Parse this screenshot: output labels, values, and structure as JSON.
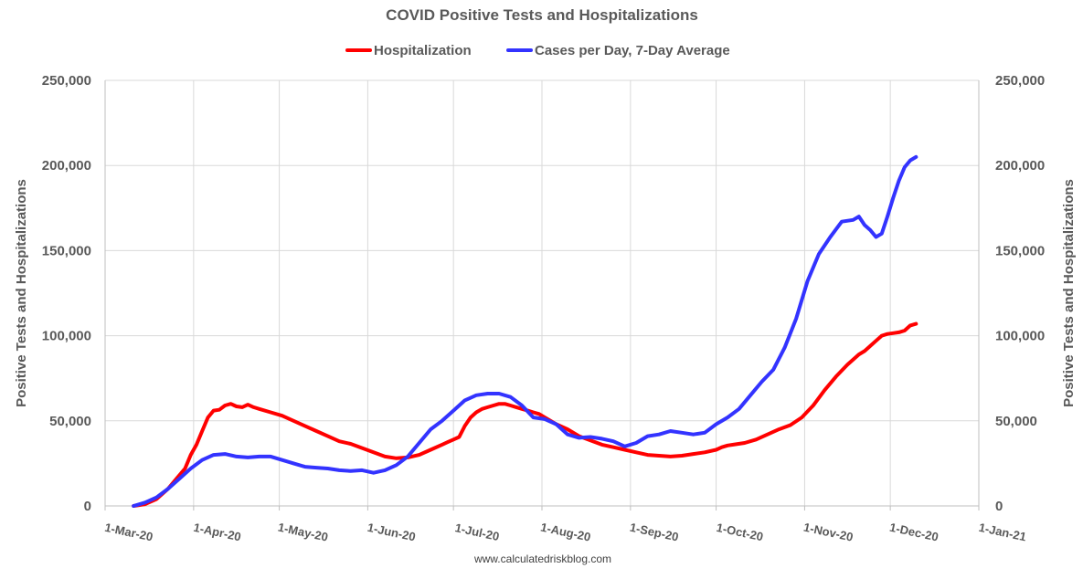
{
  "chart_data": {
    "type": "line",
    "title": "COVID Positive Tests and Hospitalizations",
    "ylabel_left": "Positive Tests and Hospitalizations",
    "ylabel_right": "Positive Tests and Hospitalizations",
    "ylim": [
      0,
      250000
    ],
    "y_ticks": [
      0,
      50000,
      100000,
      150000,
      200000,
      250000
    ],
    "y_tick_labels": [
      "0",
      "50,000",
      "100,000",
      "150,000",
      "200,000",
      "250,000"
    ],
    "x_domain_days": [
      0,
      306
    ],
    "x_ticks": [
      {
        "day": 0,
        "label": "1-Mar-20"
      },
      {
        "day": 31,
        "label": "1-Apr-20"
      },
      {
        "day": 61,
        "label": "1-May-20"
      },
      {
        "day": 92,
        "label": "1-Jun-20"
      },
      {
        "day": 122,
        "label": "1-Jul-20"
      },
      {
        "day": 153,
        "label": "1-Aug-20"
      },
      {
        "day": 184,
        "label": "1-Sep-20"
      },
      {
        "day": 214,
        "label": "1-Oct-20"
      },
      {
        "day": 245,
        "label": "1-Nov-20"
      },
      {
        "day": 275,
        "label": "1-Dec-20"
      },
      {
        "day": 306,
        "label": "1-Jan-21"
      }
    ],
    "legend_position": "top",
    "source_text": "www.calculatedriskblog.com",
    "series": [
      {
        "name": "Hospitalization",
        "color": "#ff0000",
        "x": [
          10,
          14,
          18,
          22,
          25,
          28,
          30,
          32,
          34,
          36,
          38,
          40,
          42,
          44,
          46,
          48,
          50,
          52,
          54,
          58,
          62,
          66,
          70,
          74,
          78,
          82,
          86,
          90,
          94,
          98,
          102,
          106,
          110,
          114,
          118,
          120,
          122,
          124,
          126,
          128,
          130,
          132,
          134,
          136,
          138,
          140,
          142,
          144,
          146,
          148,
          150,
          152,
          154,
          158,
          162,
          166,
          170,
          174,
          178,
          182,
          186,
          190,
          194,
          198,
          202,
          206,
          210,
          214,
          216,
          218,
          220,
          224,
          228,
          232,
          236,
          240,
          244,
          248,
          252,
          256,
          260,
          264,
          266,
          268,
          270,
          272,
          274,
          276,
          278,
          280,
          282,
          284
        ],
        "values": [
          0,
          1000,
          4000,
          10000,
          16000,
          22000,
          30000,
          36000,
          44000,
          52000,
          56000,
          56500,
          59000,
          60000,
          58500,
          58000,
          59500,
          58000,
          57000,
          55000,
          53000,
          50000,
          47000,
          44000,
          41000,
          38000,
          36500,
          34000,
          31500,
          29000,
          28000,
          28500,
          30000,
          33000,
          36000,
          37500,
          39000,
          40500,
          47000,
          52000,
          55000,
          57000,
          58000,
          59000,
          60000,
          60000,
          59000,
          58000,
          57000,
          56000,
          55000,
          54000,
          52000,
          48000,
          45000,
          41000,
          38500,
          36000,
          34500,
          33000,
          31500,
          30000,
          29500,
          29000,
          29500,
          30500,
          31500,
          33000,
          34500,
          35500,
          36000,
          37000,
          39000,
          42000,
          45000,
          47500,
          52000,
          59000,
          68000,
          76000,
          83000,
          89000,
          91000,
          94000,
          97000,
          100000,
          101000,
          101500,
          102000,
          103000,
          106000,
          107000
        ]
      },
      {
        "name": "Cases per Day, 7-Day Average",
        "color": "#3333ff",
        "x": [
          10,
          14,
          18,
          22,
          26,
          30,
          34,
          38,
          42,
          46,
          50,
          54,
          58,
          62,
          66,
          70,
          74,
          78,
          82,
          86,
          90,
          94,
          98,
          102,
          106,
          110,
          114,
          118,
          122,
          126,
          130,
          134,
          138,
          142,
          146,
          150,
          154,
          158,
          162,
          166,
          170,
          174,
          178,
          182,
          186,
          190,
          194,
          198,
          202,
          206,
          210,
          214,
          218,
          222,
          226,
          230,
          234,
          238,
          242,
          246,
          250,
          254,
          258,
          262,
          264,
          266,
          268,
          270,
          272,
          274,
          276,
          278,
          280,
          282,
          284
        ],
        "values": [
          0,
          2000,
          5000,
          10000,
          16000,
          22000,
          27000,
          30000,
          30500,
          29000,
          28500,
          29000,
          29000,
          27000,
          25000,
          23000,
          22500,
          22000,
          21000,
          20500,
          21000,
          19500,
          21000,
          24000,
          29000,
          37000,
          45000,
          50000,
          56000,
          62000,
          65000,
          66000,
          66000,
          64000,
          59000,
          52000,
          51000,
          48000,
          42000,
          40000,
          40500,
          39500,
          38000,
          35000,
          37000,
          41000,
          42000,
          44000,
          43000,
          42000,
          43000,
          48000,
          52000,
          57000,
          65000,
          73000,
          80000,
          93000,
          110000,
          132000,
          148000,
          158000,
          167000,
          168000,
          170000,
          165000,
          162000,
          158000,
          160000,
          170000,
          181000,
          191000,
          199000,
          203000,
          205000
        ]
      }
    ]
  }
}
